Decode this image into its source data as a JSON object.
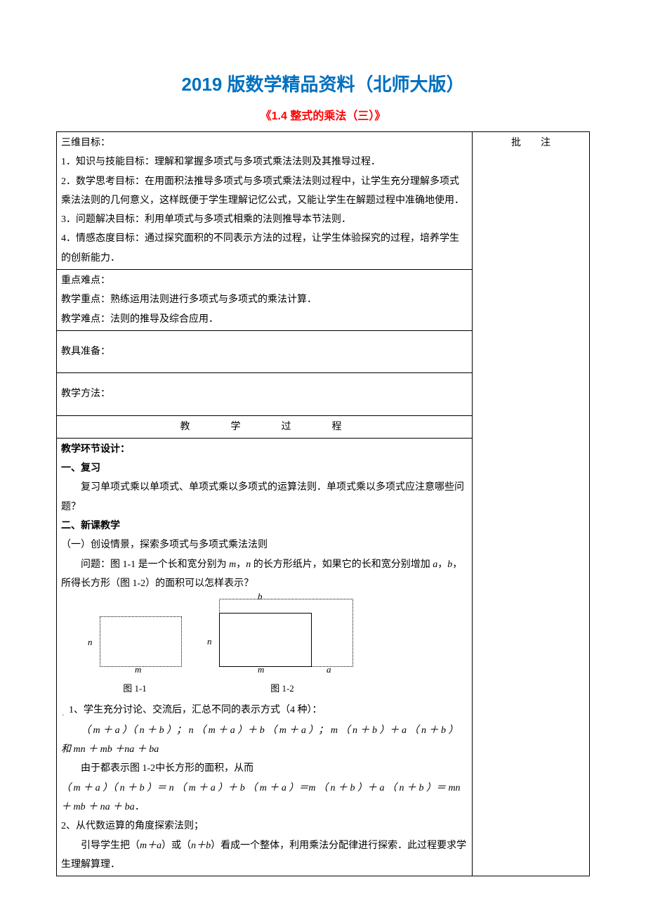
{
  "titles": {
    "main": "2019 版数学精品资料（北师大版）",
    "sub": "《1.4 整式的乘法（三）》"
  },
  "cells": {
    "annotation_header": "批　　注",
    "goals_heading": "三维目标：",
    "goal1": "1．知识与技能目标：理解和掌握多项式与多项式乘法法则及其推导过程．",
    "goal2": "2．数学思考目标：在用面积法推导多项式与多项式乘法法则过程中，让学生充分理解多项式乘法法则的几何意义，这样既便于学生理解记忆公式，又能让学生在解题过程中准确地使用．",
    "goal3": "3．问题解决目标：利用单项式与多项式相乘的法则推导本节法则．",
    "goal4": "4．情感态度目标：通过探究面积的不同表示方法的过程，让学生体验探究的过程，培养学生的创新能力．",
    "keypoints_heading": "重点难点：",
    "keypoint1": "教学重点：熟练运用法则进行多项式与多项式的乘法计算．",
    "keypoint2": "教学难点：法则的推导及综合应用．",
    "tools_heading": "教具准备：",
    "method_heading": "教学方法：",
    "process_heading": "教　　学　　过　　程",
    "section_design": "教学环节设计：",
    "s1_heading": "一、复习",
    "s1_p1": "复习单项式乘以单项式、单项式乘以多项式的运算法则．单项式乘以多项式应注意哪些问题？",
    "s2_heading": "二、新课教学",
    "s2_sub1": "（一）创设情景，探索多项式与多项式乘法法则",
    "s2_p1a": "问题：图 1-1 是一个长和宽分别为 ",
    "s2_p1_m": "m",
    "s2_p1_c1": "，",
    "s2_p1_n": "n",
    "s2_p1b": " 的长方形纸片，如果它的长和宽分别增加 ",
    "s2_p1_a": "a",
    "s2_p1_c2": "，",
    "s2_p1_bv": "b",
    "s2_p1c": "，所得长方形（图 1-2）的面积可以怎样表示？",
    "fig1_caption": "图 1-1",
    "fig2_caption": "图 1-2",
    "fig_b": "b",
    "fig_n": "n",
    "fig_m": "m",
    "fig_a": "a",
    "s2_item1_lead": "1、学生充分讨论、交流后，汇总不同的表示方式（4 种）：",
    "s2_item1_expr": "（ m ＋ a ）（ n ＋ b ）； n （ m ＋ a ）＋ b （ m ＋ a ）； m （ n ＋ b ）＋ a （ n ＋ b ） 和 mn ＋ mb ＋na ＋ ba",
    "s2_item1_p2": "由于都表示图 1-2中长方形的面积，从而",
    "s2_item1_eq": "（ m ＋ a ）（ n ＋ b ）＝ n （ m ＋ a ）＋ b （ m ＋ a ）＝m （ n ＋ b ）＋ a （ n ＋ b ）＝ mn ＋ mb ＋ na ＋ ba．",
    "s2_item2_lead": "2、从代数运算的角度探索法则；",
    "s2_item2_p1a": "引导学生把（",
    "s2_item2_p1b": "m＋a",
    "s2_item2_p1c": "）或（",
    "s2_item2_p1d": "n＋b",
    "s2_item2_p1e": "）看成一个整体，利用乘法分配律进行探索．此过程要求学生理解算理．",
    "dot": "．"
  }
}
